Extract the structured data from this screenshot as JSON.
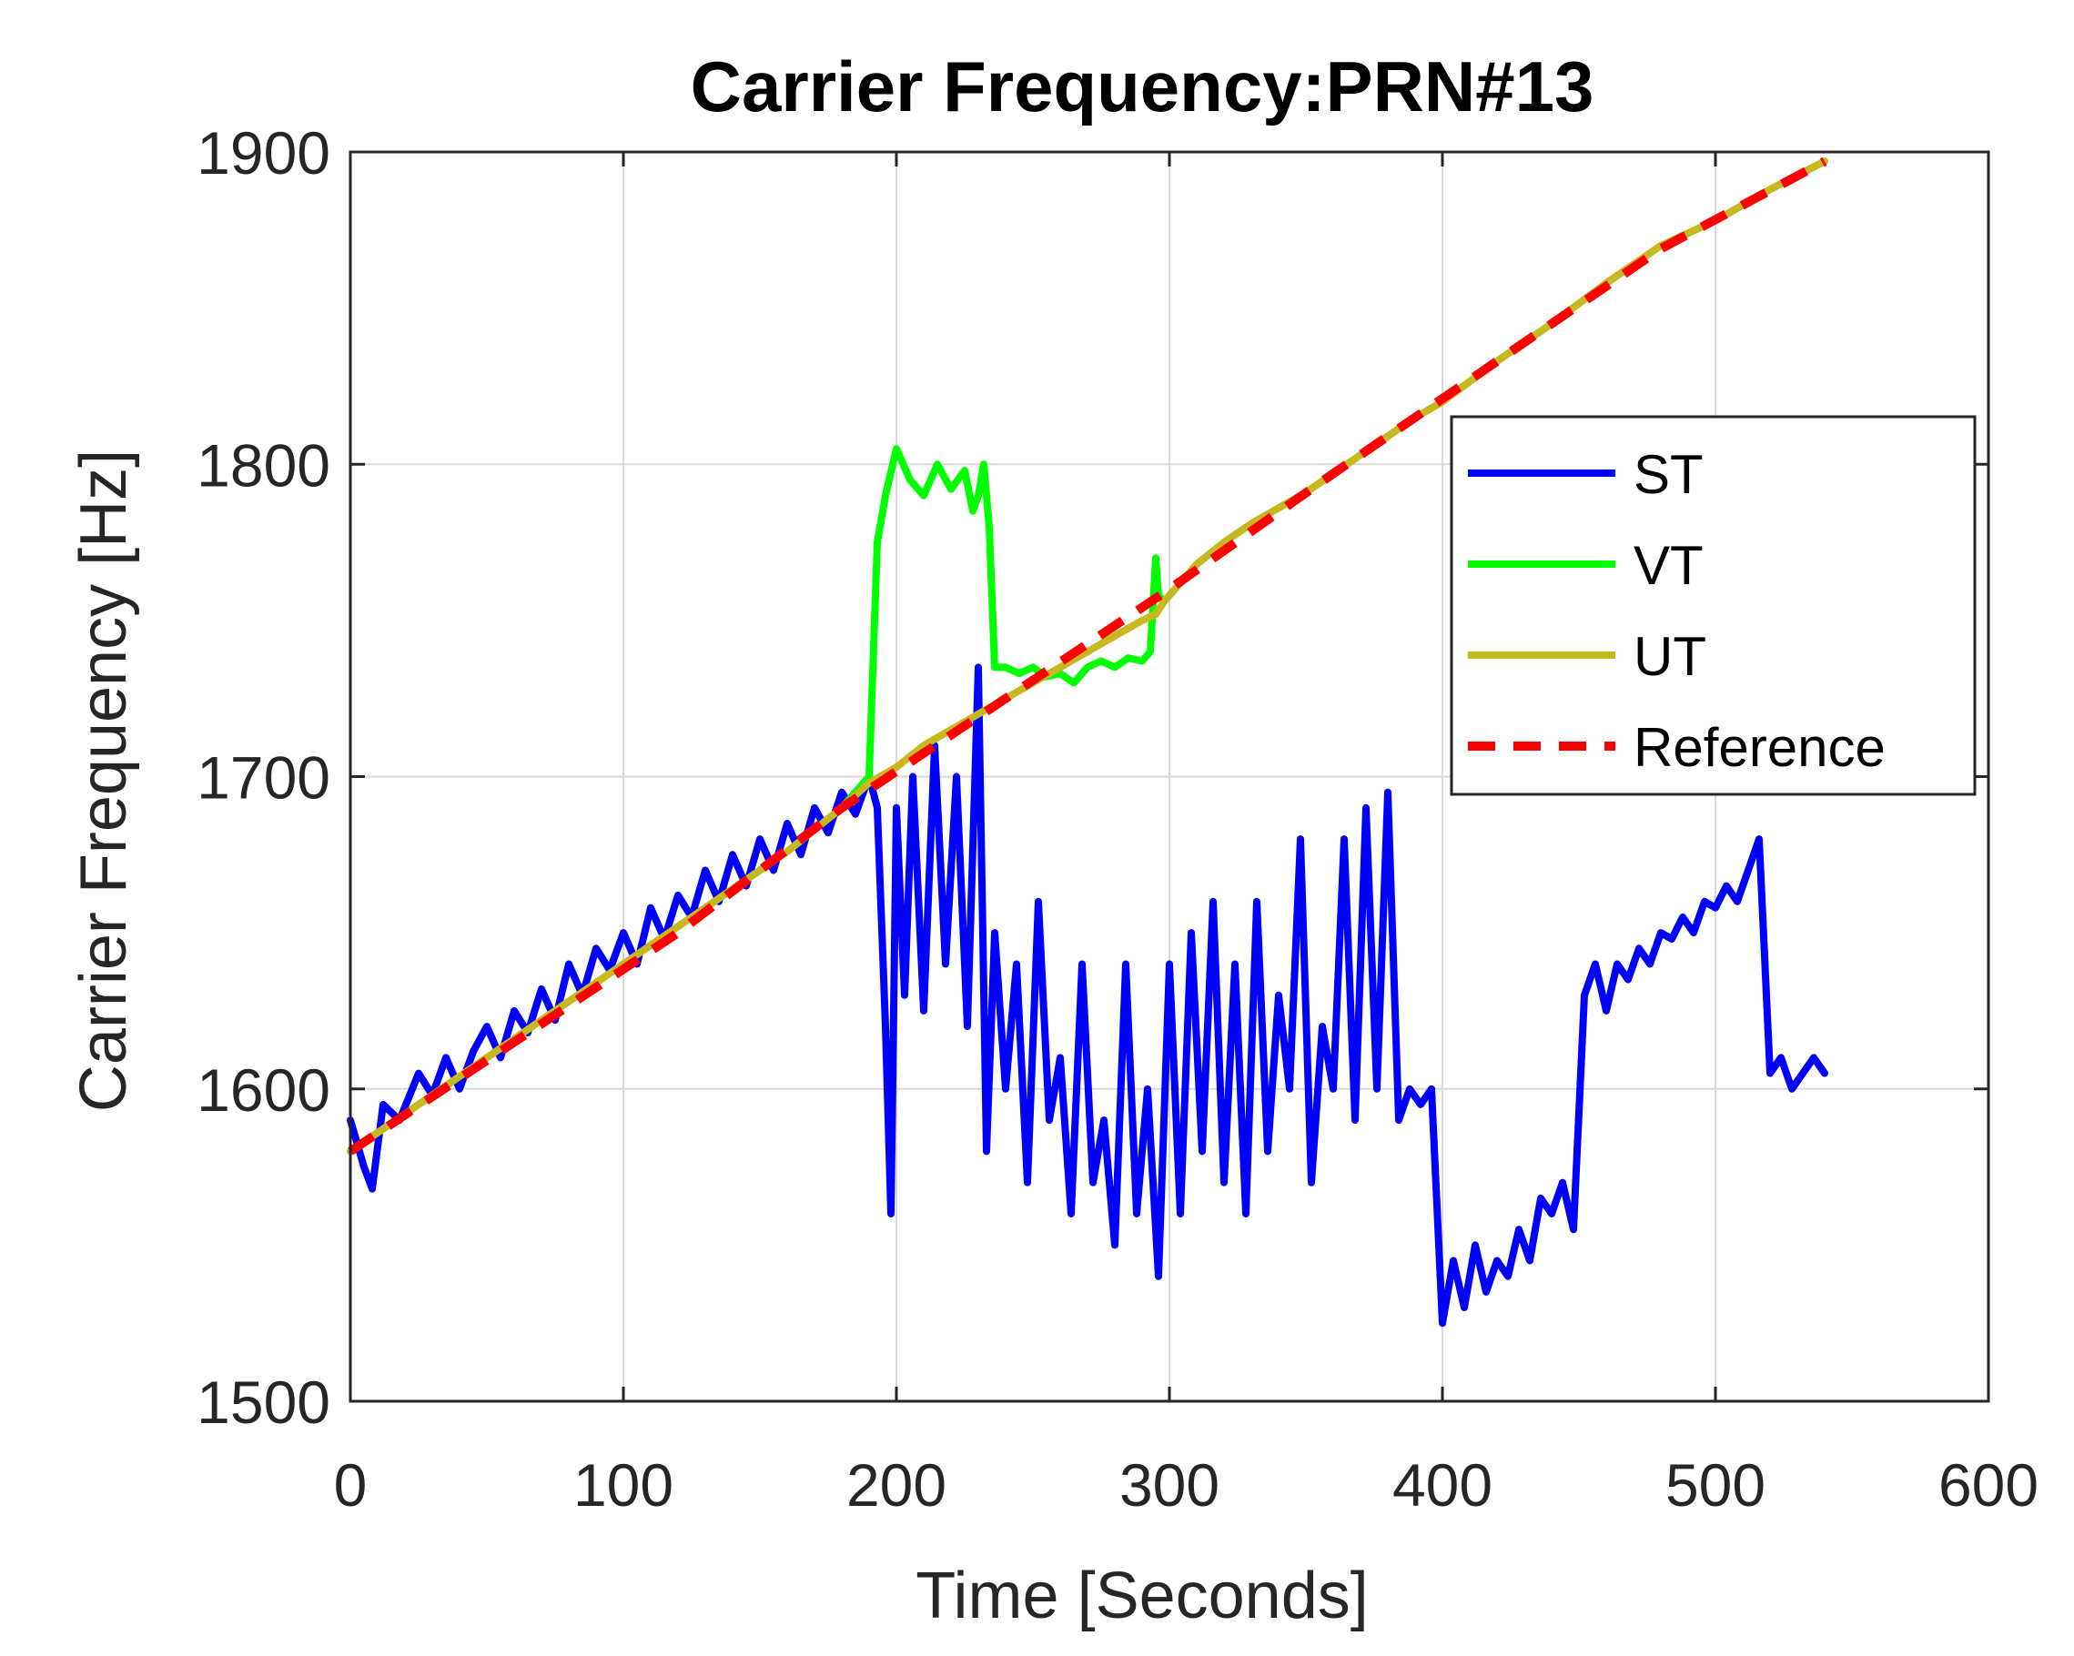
{
  "chart_data": {
    "type": "line",
    "title": "Carrier Frequency:PRN#13",
    "xlabel": "Time [Seconds]",
    "ylabel": "Carrier Frequency [Hz]",
    "xlim": [
      0,
      600
    ],
    "ylim": [
      1500,
      1900
    ],
    "xticks": [
      0,
      100,
      200,
      300,
      400,
      500,
      600
    ],
    "yticks": [
      1500,
      1600,
      1700,
      1800,
      1900
    ],
    "xtick_labels": [
      "0",
      "100",
      "200",
      "300",
      "400",
      "500",
      "600"
    ],
    "ytick_labels": [
      "1500",
      "1600",
      "1700",
      "1800",
      "1900"
    ],
    "grid": true,
    "legend_position": "top-right",
    "series": [
      {
        "name": "ST",
        "color": "#0000ff",
        "style": "solid",
        "x": [
          0,
          5,
          8,
          12,
          18,
          25,
          30,
          35,
          40,
          45,
          50,
          55,
          60,
          65,
          70,
          75,
          80,
          85,
          90,
          95,
          100,
          105,
          110,
          115,
          120,
          125,
          130,
          135,
          140,
          145,
          150,
          155,
          160,
          165,
          170,
          175,
          180,
          185,
          190,
          193,
          196,
          198,
          200,
          203,
          206,
          210,
          214,
          218,
          222,
          226,
          230,
          233,
          236,
          240,
          244,
          248,
          252,
          256,
          260,
          264,
          268,
          272,
          276,
          280,
          284,
          288,
          292,
          296,
          300,
          304,
          308,
          312,
          316,
          320,
          324,
          328,
          332,
          336,
          340,
          344,
          348,
          352,
          356,
          360,
          364,
          368,
          372,
          376,
          380,
          384,
          388,
          392,
          396,
          400,
          404,
          408,
          412,
          416,
          420,
          424,
          428,
          432,
          436,
          440,
          444,
          448,
          452,
          456,
          460,
          464,
          468,
          472,
          476,
          480,
          484,
          488,
          492,
          496,
          500,
          504,
          508,
          512,
          516,
          520,
          524,
          528,
          532,
          536,
          540
        ],
        "y": [
          1590,
          1575,
          1568,
          1595,
          1590,
          1605,
          1598,
          1610,
          1600,
          1612,
          1620,
          1610,
          1625,
          1618,
          1632,
          1622,
          1640,
          1630,
          1645,
          1638,
          1650,
          1640,
          1658,
          1648,
          1662,
          1655,
          1670,
          1660,
          1675,
          1665,
          1680,
          1670,
          1685,
          1675,
          1690,
          1682,
          1695,
          1688,
          1700,
          1690,
          1620,
          1560,
          1690,
          1630,
          1700,
          1625,
          1710,
          1640,
          1700,
          1620,
          1735,
          1580,
          1650,
          1600,
          1640,
          1570,
          1660,
          1590,
          1610,
          1560,
          1640,
          1570,
          1590,
          1550,
          1640,
          1560,
          1600,
          1540,
          1640,
          1560,
          1650,
          1580,
          1660,
          1570,
          1640,
          1560,
          1660,
          1580,
          1630,
          1600,
          1680,
          1570,
          1620,
          1600,
          1680,
          1590,
          1690,
          1600,
          1695,
          1590,
          1600,
          1595,
          1600,
          1525,
          1545,
          1530,
          1550,
          1535,
          1545,
          1540,
          1555,
          1545,
          1565,
          1560,
          1570,
          1555,
          1630,
          1640,
          1625,
          1640,
          1635,
          1645,
          1640,
          1650,
          1648,
          1655,
          1650,
          1660,
          1658,
          1665,
          1660,
          1670,
          1680,
          1605,
          1610,
          1600,
          1605,
          1610,
          1605
        ]
      },
      {
        "name": "VT",
        "color": "#00ff00",
        "style": "solid",
        "x": [
          0,
          20,
          40,
          60,
          80,
          100,
          120,
          140,
          160,
          180,
          190,
          193,
          196,
          200,
          205,
          210,
          215,
          220,
          225,
          228,
          230,
          232,
          234,
          236,
          240,
          245,
          250,
          255,
          260,
          265,
          270,
          275,
          280,
          285,
          290,
          293,
          295,
          296,
          298,
          300,
          310,
          320,
          330,
          340,
          350,
          360,
          370,
          380,
          390,
          400,
          420,
          440,
          460,
          480,
          500,
          520,
          540
        ],
        "y": [
          1580,
          1592,
          1604,
          1616,
          1628,
          1640,
          1652,
          1664,
          1676,
          1690,
          1700,
          1775,
          1790,
          1805,
          1795,
          1790,
          1800,
          1792,
          1798,
          1785,
          1790,
          1800,
          1780,
          1735,
          1735,
          1733,
          1735,
          1732,
          1733,
          1730,
          1735,
          1737,
          1735,
          1738,
          1737,
          1740,
          1770,
          1758,
          1756,
          1758,
          1768,
          1775,
          1781,
          1786,
          1791,
          1797,
          1803,
          1809,
          1815,
          1820,
          1833,
          1845,
          1858,
          1870,
          1878,
          1888,
          1897
        ]
      },
      {
        "name": "UT",
        "color": "#c8b820",
        "style": "solid",
        "x": [
          0,
          20,
          40,
          60,
          80,
          100,
          120,
          140,
          160,
          180,
          190,
          200,
          210,
          220,
          230,
          240,
          250,
          260,
          270,
          280,
          290,
          295,
          298,
          300,
          310,
          320,
          330,
          340,
          350,
          360,
          370,
          380,
          390,
          400,
          420,
          440,
          460,
          480,
          500,
          520,
          540
        ],
        "y": [
          1580,
          1592,
          1604,
          1616,
          1628,
          1640,
          1652,
          1664,
          1676,
          1690,
          1698,
          1703,
          1710,
          1715,
          1720,
          1725,
          1730,
          1735,
          1740,
          1745,
          1750,
          1752,
          1756,
          1758,
          1768,
          1775,
          1781,
          1786,
          1791,
          1797,
          1803,
          1809,
          1815,
          1820,
          1833,
          1845,
          1858,
          1870,
          1878,
          1888,
          1897
        ]
      },
      {
        "name": "Reference",
        "color": "#ff0000",
        "style": "dashed",
        "x": [
          0,
          60,
          120,
          180,
          240,
          300,
          360,
          420,
          480,
          540
        ],
        "y": [
          1580,
          1615,
          1650,
          1690,
          1725,
          1760,
          1797,
          1833,
          1869,
          1897
        ]
      }
    ]
  }
}
